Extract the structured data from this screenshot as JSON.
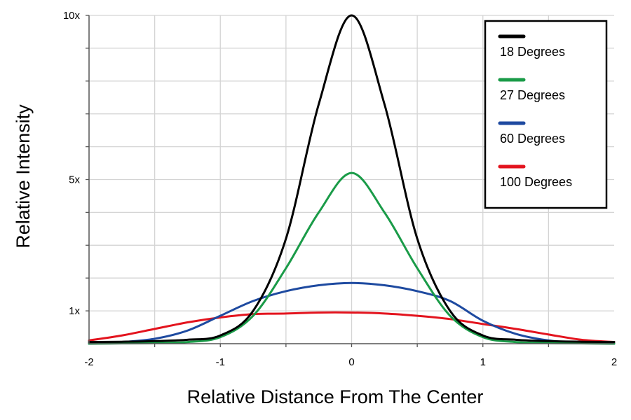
{
  "chart_data": {
    "type": "line",
    "xlabel": "Relative Distance From The Center",
    "ylabel": "Relative Intensity",
    "xlim": [
      -2,
      2
    ],
    "ylim": [
      0,
      10
    ],
    "x_ticks": [
      {
        "value": -2,
        "label": "-2"
      },
      {
        "value": -1,
        "label": "-1"
      },
      {
        "value": 0,
        "label": "0"
      },
      {
        "value": 1,
        "label": "1"
      },
      {
        "value": 2,
        "label": "2"
      }
    ],
    "y_ticks": [
      {
        "value": 1,
        "label": "1x"
      },
      {
        "value": 5,
        "label": "5x"
      },
      {
        "value": 10,
        "label": "10x"
      }
    ],
    "grid": true,
    "legend_position": "top-right",
    "x": [
      -2.0,
      -1.75,
      -1.5,
      -1.25,
      -1.0,
      -0.75,
      -0.5,
      -0.25,
      0.0,
      0.25,
      0.5,
      0.75,
      1.0,
      1.25,
      1.5,
      1.75,
      2.0
    ],
    "series": [
      {
        "name": "18 Degrees",
        "color": "#000000",
        "values": [
          0.05,
          0.06,
          0.08,
          0.12,
          0.25,
          1.0,
          3.2,
          7.3,
          10.0,
          7.3,
          3.2,
          1.0,
          0.25,
          0.12,
          0.08,
          0.06,
          0.05
        ]
      },
      {
        "name": "27 Degrees",
        "color": "#1a9b48",
        "values": [
          0.0,
          0.01,
          0.02,
          0.05,
          0.2,
          0.85,
          2.3,
          4.0,
          5.2,
          4.0,
          2.3,
          0.85,
          0.2,
          0.05,
          0.02,
          0.01,
          0.0
        ]
      },
      {
        "name": "60 Degrees",
        "color": "#1e4aa0",
        "values": [
          0.0,
          0.05,
          0.15,
          0.4,
          0.85,
          1.3,
          1.6,
          1.78,
          1.85,
          1.78,
          1.6,
          1.3,
          0.7,
          0.3,
          0.1,
          0.03,
          0.0
        ]
      },
      {
        "name": "100 Degrees",
        "color": "#e3141e",
        "values": [
          0.1,
          0.25,
          0.45,
          0.65,
          0.8,
          0.9,
          0.92,
          0.95,
          0.95,
          0.92,
          0.85,
          0.75,
          0.6,
          0.45,
          0.28,
          0.12,
          0.05
        ]
      }
    ]
  }
}
